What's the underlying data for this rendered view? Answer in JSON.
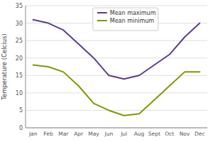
{
  "chart_data": {
    "type": "line",
    "ylabel": "Temperature (Celcius)",
    "categories": [
      "Jan",
      "Feb",
      "Mar",
      "Apr",
      "May",
      "Jun",
      "Jul",
      "Aug",
      "Sept",
      "Oct",
      "Nov",
      "Dec"
    ],
    "series": [
      {
        "name": "Mean maximum",
        "color": "#5c3d8f",
        "values": [
          31,
          30,
          28,
          24,
          20,
          15,
          14,
          15,
          18,
          21,
          26,
          30
        ]
      },
      {
        "name": "Mean minimum",
        "color": "#7d9a00",
        "values": [
          18,
          17.5,
          16,
          12,
          7,
          5,
          3.5,
          4,
          8,
          12,
          16,
          16
        ]
      }
    ],
    "ylim": [
      0,
      35
    ],
    "yticks": [
      0,
      5,
      10,
      15,
      20,
      25,
      30,
      35
    ],
    "grid": true,
    "legend": "top"
  }
}
